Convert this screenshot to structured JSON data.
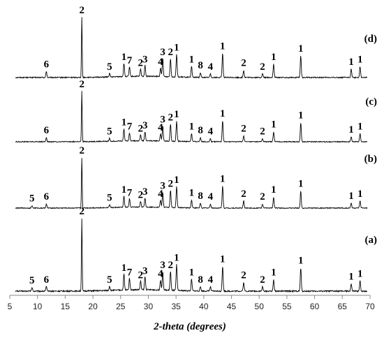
{
  "chart_data": {
    "type": "line",
    "title": "",
    "xlabel": "2-theta (degrees)",
    "ylabel": "",
    "xlim": [
      5,
      70
    ],
    "x_ticks": [
      5,
      10,
      15,
      20,
      25,
      30,
      35,
      40,
      45,
      50,
      55,
      60,
      65,
      70
    ],
    "grid": false,
    "legend": "none",
    "line_color": "#000000",
    "series": [
      {
        "name": "(d)",
        "peaks": [
          {
            "x": 11.6,
            "h": 0.1,
            "label": "6"
          },
          {
            "x": 18.0,
            "h": 1.0,
            "label": "2"
          },
          {
            "x": 23.0,
            "h": 0.06,
            "label": "5"
          },
          {
            "x": 25.6,
            "h": 0.22,
            "label": "1"
          },
          {
            "x": 26.6,
            "h": 0.16,
            "label": "7"
          },
          {
            "x": 28.6,
            "h": 0.12,
            "label": "2"
          },
          {
            "x": 29.4,
            "h": 0.18,
            "label": "3"
          },
          {
            "x": 32.2,
            "h": 0.14,
            "label": "4"
          },
          {
            "x": 32.6,
            "h": 0.3,
            "label": "3"
          },
          {
            "x": 34.0,
            "h": 0.3,
            "label": "2"
          },
          {
            "x": 35.1,
            "h": 0.38,
            "label": "1"
          },
          {
            "x": 37.8,
            "h": 0.18,
            "label": "1"
          },
          {
            "x": 39.4,
            "h": 0.08,
            "label": "8"
          },
          {
            "x": 41.2,
            "h": 0.06,
            "label": "4"
          },
          {
            "x": 43.4,
            "h": 0.4,
            "label": "1"
          },
          {
            "x": 47.2,
            "h": 0.12,
            "label": "2"
          },
          {
            "x": 50.6,
            "h": 0.06,
            "label": "2"
          },
          {
            "x": 52.6,
            "h": 0.22,
            "label": "1"
          },
          {
            "x": 57.5,
            "h": 0.36,
            "label": "1"
          },
          {
            "x": 66.6,
            "h": 0.14,
            "label": "1"
          },
          {
            "x": 68.2,
            "h": 0.18,
            "label": "1"
          }
        ]
      },
      {
        "name": "(c)",
        "peaks": [
          {
            "x": 11.6,
            "h": 0.08,
            "label": "6"
          },
          {
            "x": 18.0,
            "h": 1.0,
            "label": "2"
          },
          {
            "x": 23.0,
            "h": 0.06,
            "label": "5"
          },
          {
            "x": 25.6,
            "h": 0.24,
            "label": "1"
          },
          {
            "x": 26.6,
            "h": 0.16,
            "label": "7"
          },
          {
            "x": 28.6,
            "h": 0.12,
            "label": "2"
          },
          {
            "x": 29.4,
            "h": 0.18,
            "label": "3"
          },
          {
            "x": 32.2,
            "h": 0.14,
            "label": "4"
          },
          {
            "x": 32.6,
            "h": 0.3,
            "label": "3"
          },
          {
            "x": 34.0,
            "h": 0.34,
            "label": "2"
          },
          {
            "x": 35.1,
            "h": 0.4,
            "label": "1"
          },
          {
            "x": 37.8,
            "h": 0.16,
            "label": "1"
          },
          {
            "x": 39.4,
            "h": 0.08,
            "label": "8"
          },
          {
            "x": 41.2,
            "h": 0.06,
            "label": "4"
          },
          {
            "x": 43.4,
            "h": 0.42,
            "label": "1"
          },
          {
            "x": 47.2,
            "h": 0.12,
            "label": "2"
          },
          {
            "x": 50.6,
            "h": 0.06,
            "label": "2"
          },
          {
            "x": 52.6,
            "h": 0.2,
            "label": "1"
          },
          {
            "x": 57.5,
            "h": 0.38,
            "label": "1"
          },
          {
            "x": 66.6,
            "h": 0.1,
            "label": "1"
          },
          {
            "x": 68.2,
            "h": 0.16,
            "label": "1"
          }
        ]
      },
      {
        "name": "(b)",
        "peaks": [
          {
            "x": 9.0,
            "h": 0.05,
            "label": "5"
          },
          {
            "x": 11.6,
            "h": 0.08,
            "label": "6"
          },
          {
            "x": 18.0,
            "h": 1.0,
            "label": "2"
          },
          {
            "x": 23.0,
            "h": 0.06,
            "label": "5"
          },
          {
            "x": 25.6,
            "h": 0.22,
            "label": "1"
          },
          {
            "x": 26.6,
            "h": 0.16,
            "label": "7"
          },
          {
            "x": 28.6,
            "h": 0.12,
            "label": "2"
          },
          {
            "x": 29.4,
            "h": 0.18,
            "label": "3"
          },
          {
            "x": 32.2,
            "h": 0.14,
            "label": "4"
          },
          {
            "x": 32.6,
            "h": 0.3,
            "label": "3"
          },
          {
            "x": 34.0,
            "h": 0.34,
            "label": "2"
          },
          {
            "x": 35.1,
            "h": 0.42,
            "label": "1"
          },
          {
            "x": 37.8,
            "h": 0.16,
            "label": "1"
          },
          {
            "x": 39.4,
            "h": 0.1,
            "label": "8"
          },
          {
            "x": 41.2,
            "h": 0.08,
            "label": "4"
          },
          {
            "x": 43.4,
            "h": 0.44,
            "label": "1"
          },
          {
            "x": 47.2,
            "h": 0.14,
            "label": "2"
          },
          {
            "x": 50.6,
            "h": 0.08,
            "label": "2"
          },
          {
            "x": 52.6,
            "h": 0.22,
            "label": "1"
          },
          {
            "x": 57.5,
            "h": 0.34,
            "label": "1"
          },
          {
            "x": 66.6,
            "h": 0.1,
            "label": "1"
          },
          {
            "x": 68.2,
            "h": 0.14,
            "label": "1"
          }
        ]
      },
      {
        "name": "(a)",
        "peaks": [
          {
            "x": 9.0,
            "h": 0.05,
            "label": "5"
          },
          {
            "x": 11.6,
            "h": 0.06,
            "label": "6"
          },
          {
            "x": 18.0,
            "h": 1.0,
            "label": "2"
          },
          {
            "x": 23.0,
            "h": 0.06,
            "label": "5"
          },
          {
            "x": 25.6,
            "h": 0.22,
            "label": "1"
          },
          {
            "x": 26.6,
            "h": 0.16,
            "label": "7"
          },
          {
            "x": 28.6,
            "h": 0.12,
            "label": "2"
          },
          {
            "x": 29.4,
            "h": 0.18,
            "label": "3"
          },
          {
            "x": 32.2,
            "h": 0.14,
            "label": "4"
          },
          {
            "x": 32.6,
            "h": 0.26,
            "label": "3"
          },
          {
            "x": 34.0,
            "h": 0.26,
            "label": "2"
          },
          {
            "x": 35.1,
            "h": 0.36,
            "label": "1"
          },
          {
            "x": 37.8,
            "h": 0.16,
            "label": "1"
          },
          {
            "x": 39.4,
            "h": 0.06,
            "label": "8"
          },
          {
            "x": 41.2,
            "h": 0.06,
            "label": "4"
          },
          {
            "x": 43.4,
            "h": 0.34,
            "label": "1"
          },
          {
            "x": 47.2,
            "h": 0.12,
            "label": "2"
          },
          {
            "x": 50.6,
            "h": 0.06,
            "label": "2"
          },
          {
            "x": 52.6,
            "h": 0.16,
            "label": "1"
          },
          {
            "x": 57.5,
            "h": 0.32,
            "label": "1"
          },
          {
            "x": 66.6,
            "h": 0.1,
            "label": "1"
          },
          {
            "x": 68.2,
            "h": 0.14,
            "label": "1"
          }
        ]
      }
    ]
  }
}
